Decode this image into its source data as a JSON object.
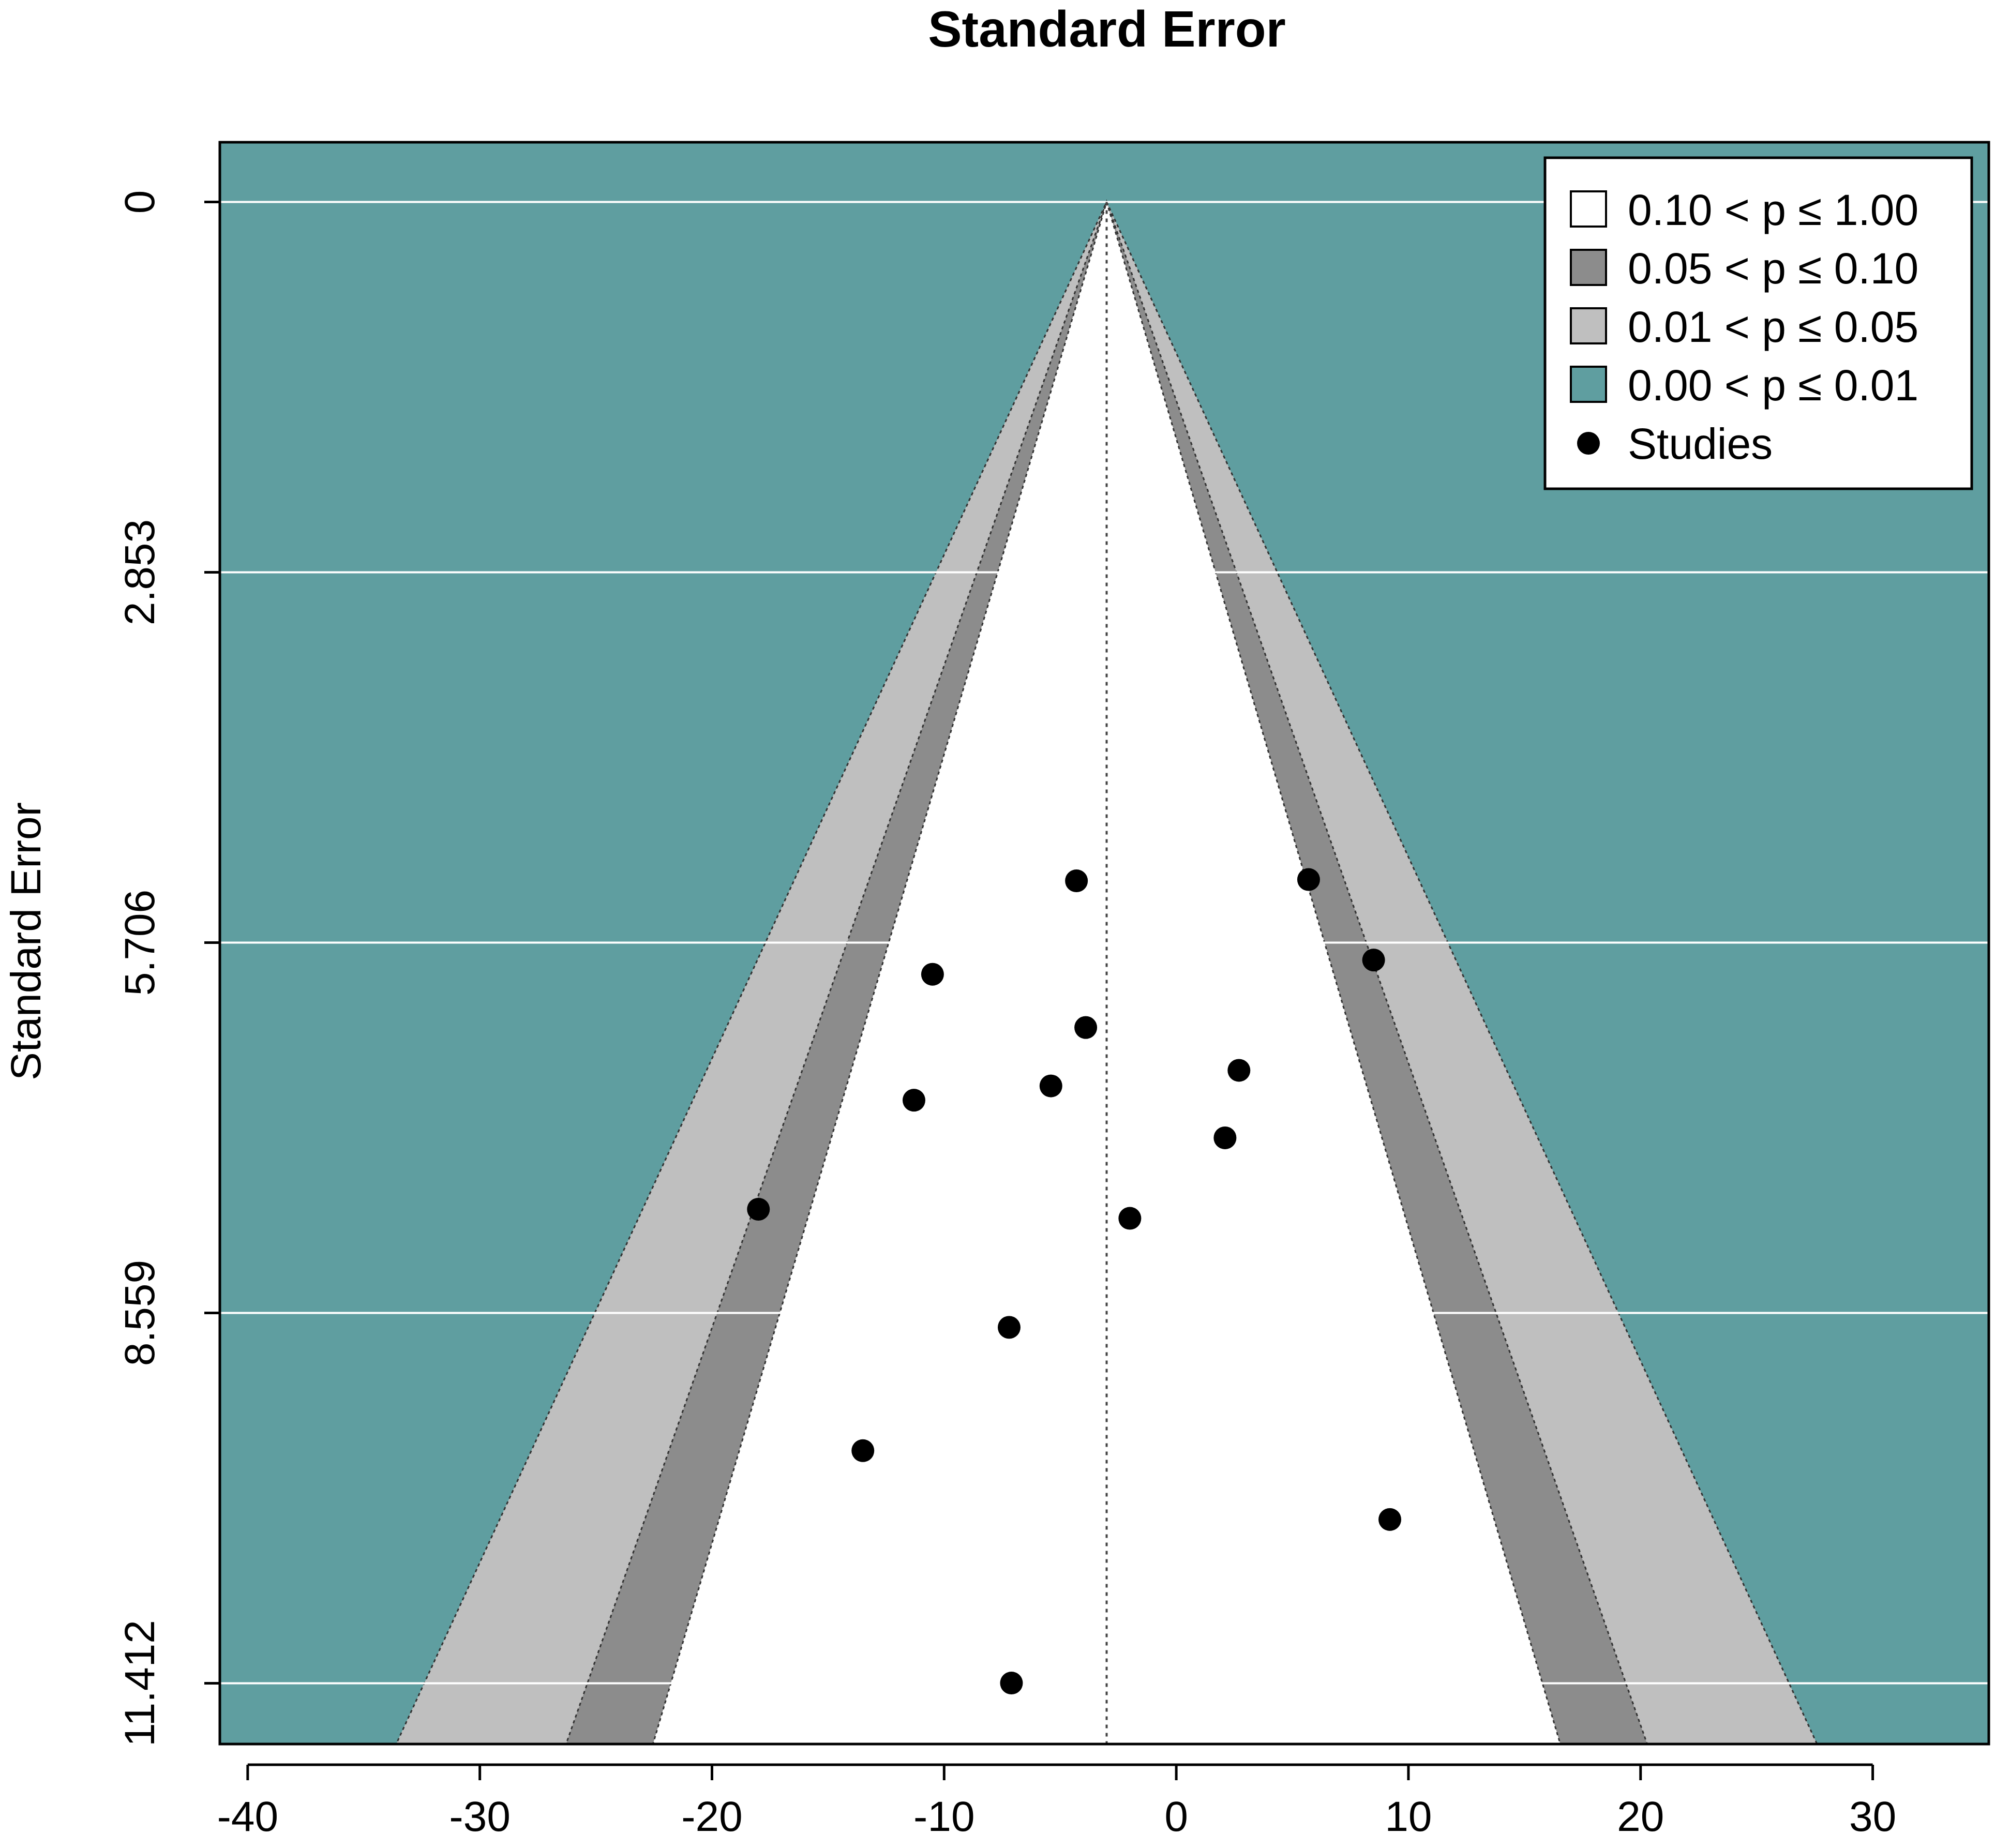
{
  "chart_data": {
    "type": "scatter",
    "title": "Standard Error",
    "ylabel": "Standard Error",
    "xlabel": "",
    "xlim": [
      -41.2,
      35
    ],
    "ylim": [
      11.88,
      -0.46
    ],
    "xticks": [
      "-40",
      "-30",
      "-20",
      "-10",
      "0",
      "10",
      "20",
      "30"
    ],
    "xtick_values": [
      -40,
      -30,
      -20,
      -10,
      0,
      10,
      20,
      30
    ],
    "yticks": [
      "0",
      "2.853",
      "5.706",
      "8.559",
      "11.412"
    ],
    "ytick_values": [
      0,
      2.853,
      5.706,
      8.559,
      11.412
    ],
    "center": -3.0,
    "contours": [
      {
        "label": "0.10 < p ≤ 1.00",
        "z": 1.645,
        "color": "#ffffff"
      },
      {
        "label": "0.05 < p ≤ 0.10",
        "z": 1.96,
        "color": "#8c8c8c"
      },
      {
        "label": "0.01 < p ≤ 0.05",
        "z": 2.576,
        "color": "#bfbfbf"
      },
      {
        "label": "0.00 < p ≤ 0.01",
        "color": "#5f9ea0"
      }
    ],
    "series": [
      {
        "name": "Studies",
        "color": "#000000",
        "points": [
          {
            "x": -4.3,
            "y": 5.23
          },
          {
            "x": 5.7,
            "y": 5.22
          },
          {
            "x": -10.5,
            "y": 5.95
          },
          {
            "x": 8.5,
            "y": 5.84
          },
          {
            "x": -3.9,
            "y": 6.36
          },
          {
            "x": 2.7,
            "y": 6.69
          },
          {
            "x": -5.4,
            "y": 6.81
          },
          {
            "x": -11.3,
            "y": 6.92
          },
          {
            "x": 2.1,
            "y": 7.21
          },
          {
            "x": -18.0,
            "y": 7.76
          },
          {
            "x": -2.0,
            "y": 7.83
          },
          {
            "x": -7.2,
            "y": 8.67
          },
          {
            "x": -13.5,
            "y": 9.62
          },
          {
            "x": 9.2,
            "y": 10.15
          },
          {
            "x": -7.1,
            "y": 11.41
          }
        ]
      }
    ],
    "legend": {
      "position": "top-right",
      "entries": [
        "0.10 < p ≤ 1.00",
        "0.05 < p ≤ 0.10",
        "0.01 < p ≤ 0.05",
        "0.00 < p ≤ 0.01",
        "Studies"
      ]
    },
    "grid": true
  }
}
